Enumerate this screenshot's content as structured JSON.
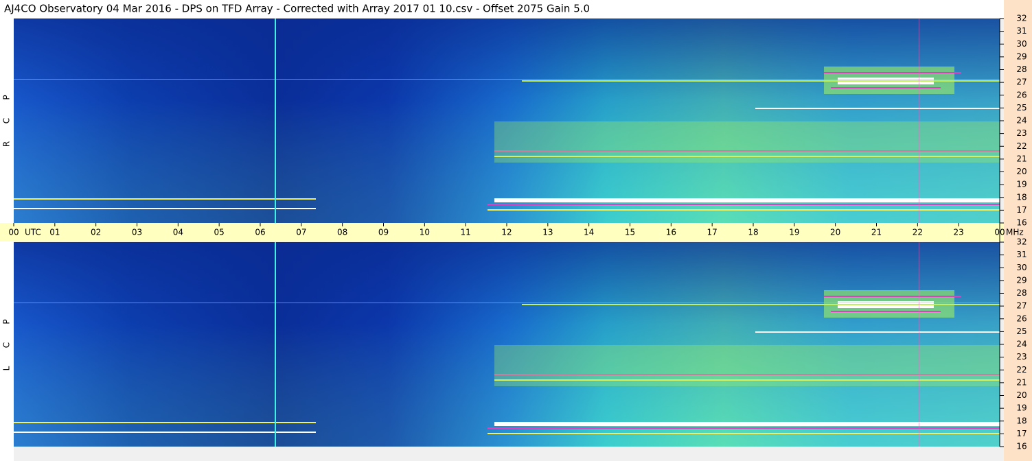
{
  "header": {
    "title": "AJ4CO Observatory  04 Mar 2016  -  DPS on TFD Array  -  Corrected with Array 2017 01 10.csv  -  Offset 2075  Gain 5.0"
  },
  "time_axis": {
    "hours": [
      "00",
      "01",
      "02",
      "03",
      "04",
      "05",
      "06",
      "07",
      "08",
      "09",
      "10",
      "11",
      "12",
      "13",
      "14",
      "15",
      "16",
      "17",
      "18",
      "19",
      "20",
      "21",
      "22",
      "23",
      "00"
    ],
    "zone": "UTC",
    "unit": "MHz"
  },
  "freq_axis": {
    "labels": [
      32,
      31,
      30,
      29,
      28,
      27,
      26,
      25,
      24,
      23,
      22,
      21,
      20,
      19,
      18,
      17,
      16
    ]
  },
  "panels": [
    {
      "label": [
        "R",
        "C",
        "P"
      ]
    },
    {
      "label": [
        "L",
        "C",
        "P"
      ]
    }
  ]
}
